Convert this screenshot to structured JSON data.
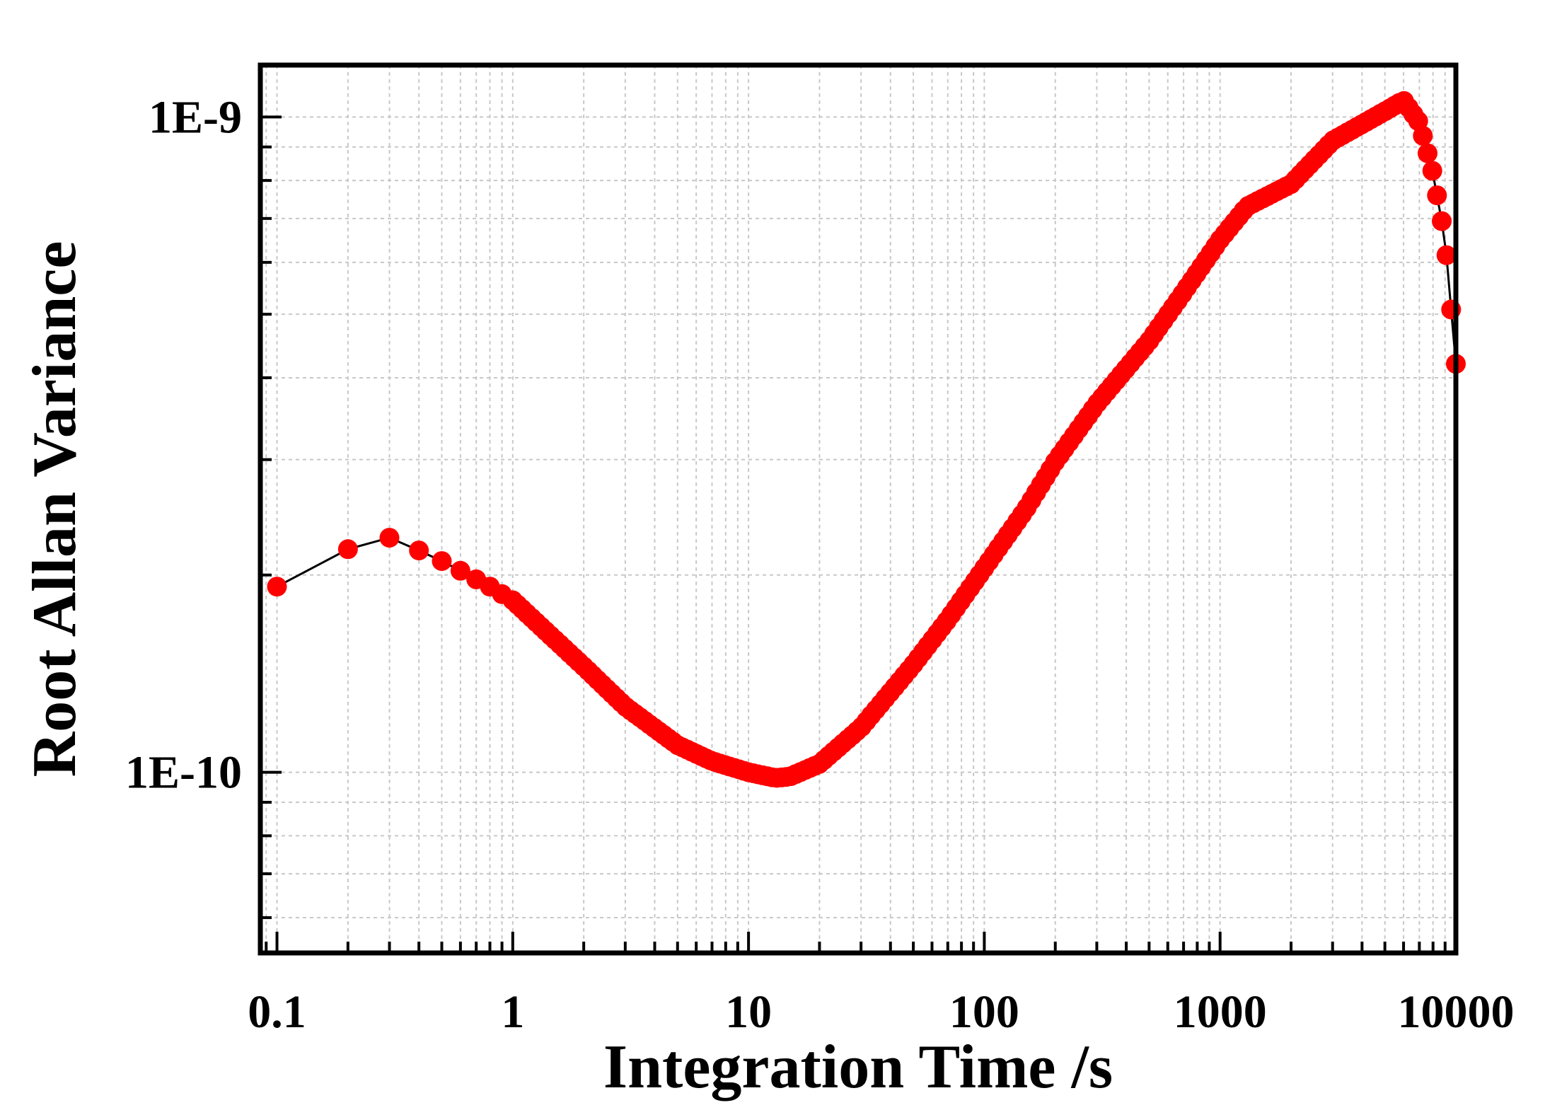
{
  "chart_data": {
    "type": "scatter",
    "title": "",
    "xlabel": "Integration Time /s",
    "ylabel": "Root Allan Variance",
    "xscale": "log",
    "yscale": "log",
    "xlim": [
      0.085,
      10000
    ],
    "ylim": [
      5.3e-11,
      1.2e-09
    ],
    "x_ticks": [
      {
        "value": 0.1,
        "label": "0.1"
      },
      {
        "value": 1,
        "label": "1"
      },
      {
        "value": 10,
        "label": "10"
      },
      {
        "value": 100,
        "label": "100"
      },
      {
        "value": 1000,
        "label": "1000"
      },
      {
        "value": 10000,
        "label": "10000"
      }
    ],
    "y_ticks": [
      {
        "value": 1e-10,
        "label": "1E-10"
      },
      {
        "value": 1e-09,
        "label": "1E-9"
      }
    ],
    "grid": true,
    "legend": "none",
    "colors": {
      "marker": "#ff0000",
      "line": "#000000",
      "grid": "#c8c8c8",
      "axes": "#000000"
    },
    "series": [
      {
        "x": [
          0.1,
          0.2,
          0.3,
          0.4,
          0.5,
          0.6,
          0.7,
          0.8,
          0.9,
          1,
          2,
          3,
          5,
          7,
          10,
          13,
          15,
          20,
          30,
          50,
          70,
          100,
          150,
          200,
          300,
          500,
          700,
          1000,
          1300,
          2000,
          3000,
          5000,
          6000,
          7000,
          8000,
          9000,
          10000
        ],
        "y": [
          1.92e-10,
          2.19e-10,
          2.28e-10,
          2.18e-10,
          2.1e-10,
          2.03e-10,
          1.97e-10,
          1.92e-10,
          1.87e-10,
          1.83e-10,
          1.45e-10,
          1.26e-10,
          1.1e-10,
          1.04e-10,
          1e-10,
          9.8e-11,
          9.85e-11,
          1.03e-10,
          1.17e-10,
          1.46e-10,
          1.71e-10,
          2.05e-10,
          2.52e-10,
          2.98e-10,
          3.65e-10,
          4.55e-10,
          5.4e-10,
          6.5e-10,
          7.3e-10,
          7.9e-10,
          9.2e-10,
          1.02e-09,
          1.06e-09,
          9.8e-10,
          8.2e-10,
          6.5e-10,
          4.2e-10
        ]
      }
    ]
  }
}
